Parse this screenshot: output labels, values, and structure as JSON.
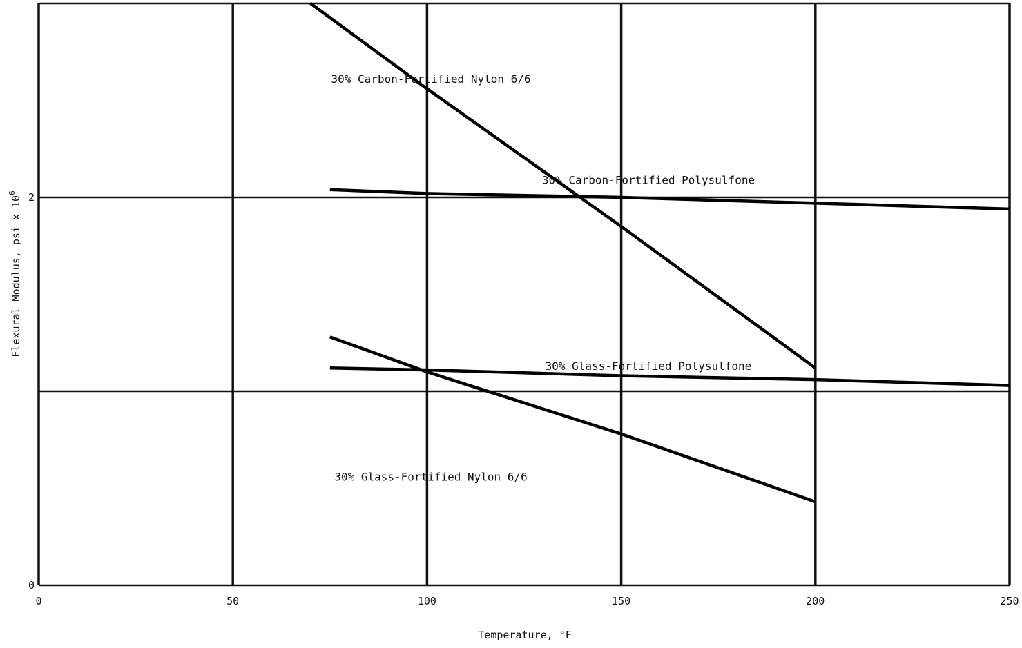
{
  "chart_data": {
    "type": "line",
    "title": "",
    "xlabel": "Temperature, °F",
    "ylabel_main": "Flexural Modulus, psi x 10",
    "ylabel_exp": "6",
    "xlim": [
      0,
      250
    ],
    "ylim": [
      0,
      3
    ],
    "x_ticks": [
      0,
      50,
      100,
      150,
      200,
      250
    ],
    "y_ticks": [
      0,
      2
    ],
    "y_gridlines": [
      0,
      1,
      2,
      3
    ],
    "grid": true,
    "legend": "none",
    "series": [
      {
        "name": "30% Carbon-Fortified Nylon 6/6",
        "x": [
          70,
          100,
          150,
          200
        ],
        "y": [
          3.0,
          2.56,
          1.85,
          1.12
        ]
      },
      {
        "name": "30% Carbon-Fortified Polysulfone",
        "x": [
          75,
          100,
          150,
          200,
          250
        ],
        "y": [
          2.04,
          2.02,
          2.0,
          1.97,
          1.94
        ]
      },
      {
        "name": "30% Glass-Fortified Polysulfone",
        "x": [
          75,
          100,
          150,
          200,
          250
        ],
        "y": [
          1.12,
          1.11,
          1.08,
          1.06,
          1.03
        ]
      },
      {
        "name": "30% Glass-Fortified Nylon 6/6",
        "x": [
          75,
          100,
          150,
          200
        ],
        "y": [
          1.28,
          1.1,
          0.78,
          0.43
        ]
      }
    ],
    "labels": [
      {
        "text_left": "30% Carbon-Fortified",
        "text_right": "Nylon 6/6",
        "x": 101,
        "y": 2.59
      },
      {
        "text_left": "30% Carbon-Fortified",
        "text_right": "Polysulfone",
        "x": 157,
        "y": 2.07
      },
      {
        "text_left": "30% Glass-Fortified",
        "text_right": "Polysulfone",
        "x": 157,
        "y": 1.11
      },
      {
        "text_left": "30% Glass-Fortified",
        "text_right": "Nylon 6/6",
        "x": 101,
        "y": 0.54
      }
    ]
  }
}
